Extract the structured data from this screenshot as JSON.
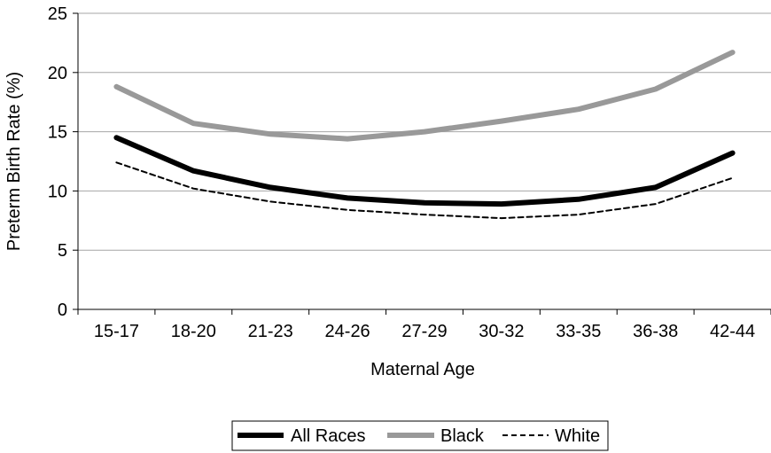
{
  "chart_data": {
    "type": "line",
    "title": "",
    "xlabel": "Maternal Age",
    "ylabel": "Preterm Birth Rate (%)",
    "categories": [
      "15-17",
      "18-20",
      "21-23",
      "24-26",
      "27-29",
      "30-32",
      "33-35",
      "36-38",
      "42-44"
    ],
    "ylim": [
      0,
      25
    ],
    "yticks": [
      0,
      5,
      10,
      15,
      20,
      25
    ],
    "grid": true,
    "legend": "bottom",
    "series": [
      {
        "name": "All Races",
        "values": [
          14.5,
          11.7,
          10.3,
          9.4,
          9.0,
          8.9,
          9.3,
          10.3,
          13.2
        ],
        "color": "#000000",
        "style": "solid-thick"
      },
      {
        "name": "Black",
        "values": [
          18.8,
          15.7,
          14.8,
          14.4,
          15.0,
          15.9,
          16.9,
          18.6,
          21.7
        ],
        "color": "#999999",
        "style": "solid-thick"
      },
      {
        "name": "White",
        "values": [
          12.4,
          10.2,
          9.1,
          8.4,
          8.0,
          7.7,
          8.0,
          8.9,
          11.1
        ],
        "color": "#000000",
        "style": "dashed-thin"
      }
    ]
  }
}
